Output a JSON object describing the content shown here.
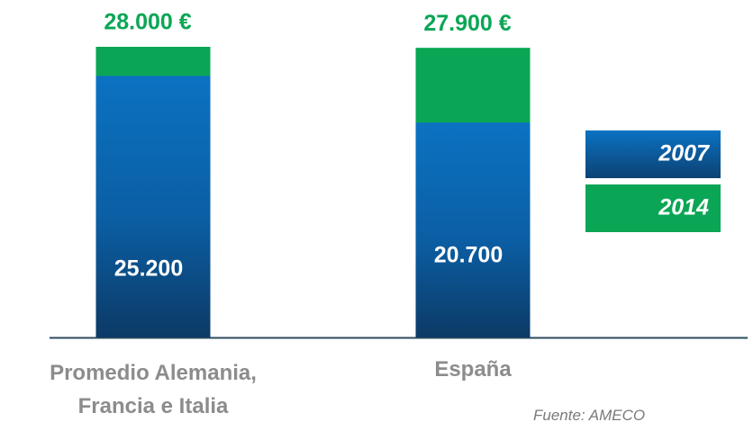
{
  "chart_data": {
    "type": "bar",
    "overlay": true,
    "categories": [
      "Promedio Alemania, Francia e Italia",
      "España"
    ],
    "series": [
      {
        "name": "2007",
        "color": "#0b6fbd",
        "values": [
          25200,
          20700
        ],
        "value_labels": [
          "25.200",
          "20.700"
        ]
      },
      {
        "name": "2014",
        "color": "#0aa655",
        "values": [
          28000,
          27900
        ],
        "value_labels": [
          "28.000 €",
          "27.900 €"
        ]
      }
    ],
    "ylim": [
      0,
      28000
    ],
    "legend": "right",
    "grid": false,
    "source": "Fuente: AMECO"
  }
}
